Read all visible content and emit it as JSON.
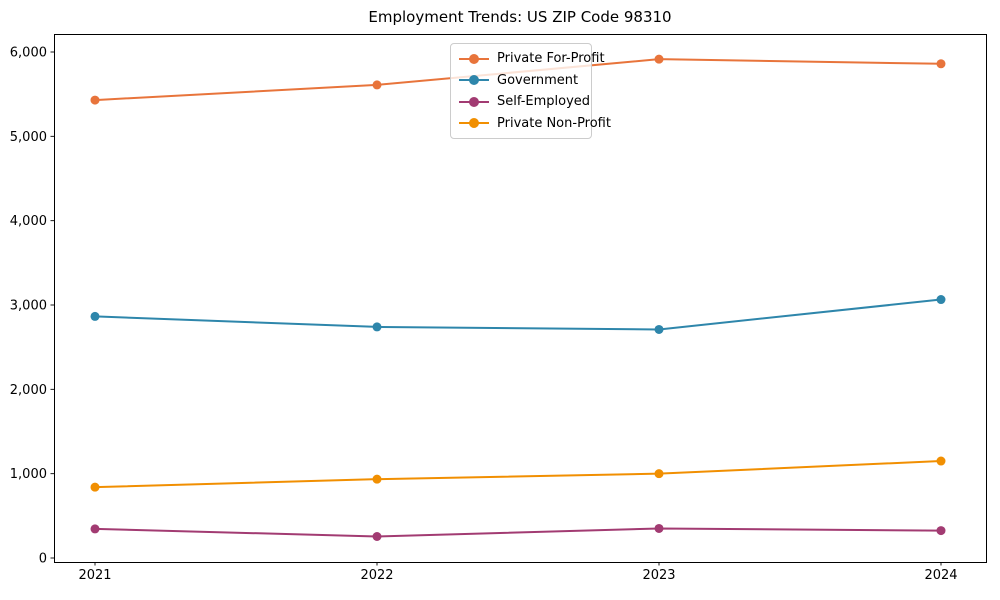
{
  "chart_data": {
    "type": "line",
    "title": "Employment Trends: US ZIP Code 98310",
    "xlabel": "",
    "ylabel": "",
    "grid": false,
    "legend_position": "inside upper-center",
    "categories": [
      "2021",
      "2022",
      "2023",
      "2024"
    ],
    "y_ticks": [
      0,
      1000,
      2000,
      3000,
      4000,
      5000,
      6000
    ],
    "y_tick_labels": [
      "0",
      "1,000",
      "2,000",
      "3,000",
      "4,000",
      "5,000",
      "6,000"
    ],
    "ylim": [
      -50,
      6215
    ],
    "series": [
      {
        "name": "Private For-Profit",
        "color": "#E8743B",
        "values": [
          5430,
          5610,
          5915,
          5860
        ]
      },
      {
        "name": "Government",
        "color": "#2E86AB",
        "values": [
          2865,
          2740,
          2710,
          3065
        ]
      },
      {
        "name": "Self-Employed",
        "color": "#A23B72",
        "values": [
          345,
          255,
          350,
          325
        ]
      },
      {
        "name": "Private Non-Profit",
        "color": "#F18F01",
        "values": [
          840,
          935,
          1000,
          1150
        ]
      }
    ]
  }
}
